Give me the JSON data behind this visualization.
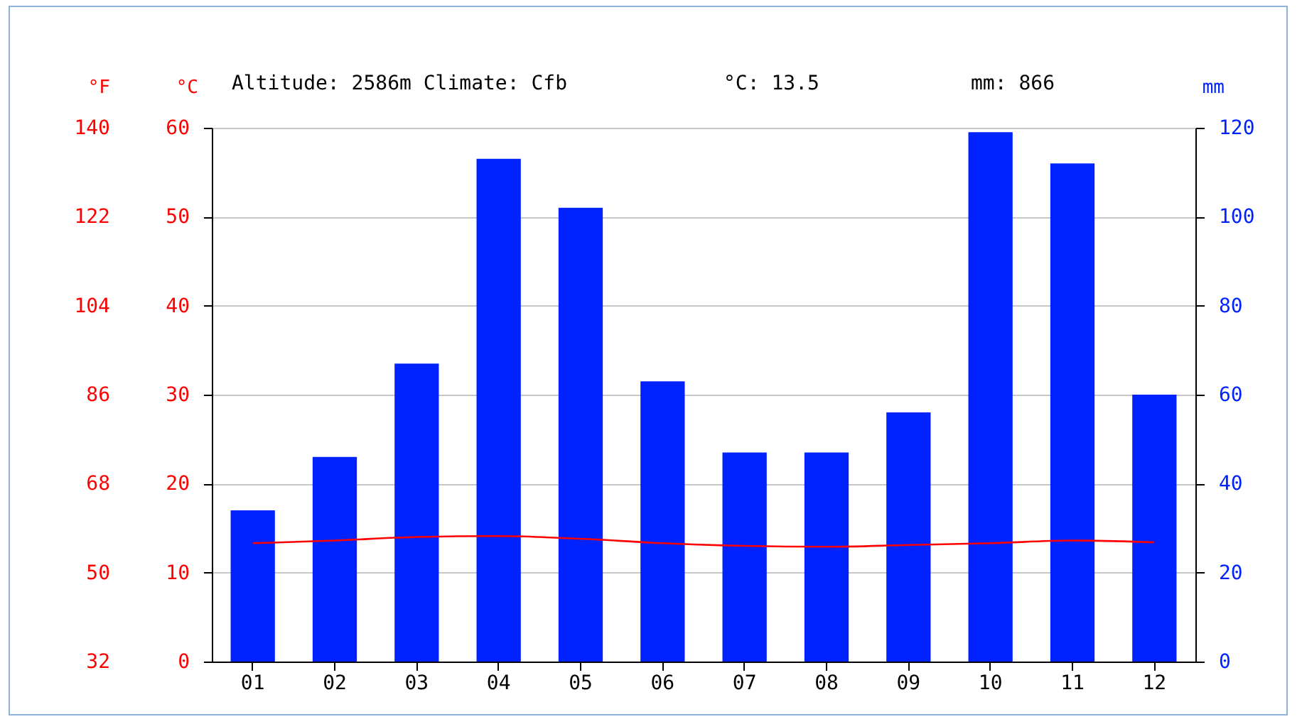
{
  "chart_data": {
    "type": "bar",
    "categories": [
      "01",
      "02",
      "03",
      "04",
      "05",
      "06",
      "07",
      "08",
      "09",
      "10",
      "11",
      "12"
    ],
    "series": [
      {
        "axis": "y2",
        "color": "#0022ff",
        "values": [
          34,
          46,
          67,
          113,
          102,
          63,
          47,
          47,
          56,
          119,
          112,
          60
        ]
      },
      {
        "type": "line",
        "axis": "y",
        "color": "#ff0000",
        "values": [
          13.3,
          13.6,
          14.0,
          14.1,
          13.8,
          13.3,
          13.0,
          12.9,
          13.1,
          13.3,
          13.6,
          13.4
        ]
      }
    ],
    "ylabel": "°C",
    "ylim": [
      0,
      60
    ],
    "yticks": [
      0,
      10,
      20,
      30,
      40,
      50,
      60
    ],
    "y2label": "mm",
    "y2lim": [
      0,
      120
    ],
    "y2ticks": [
      0,
      20,
      40,
      60,
      80,
      100,
      120
    ],
    "y3label": "°F",
    "y3lim": [
      32,
      140
    ],
    "y3ticks": [
      32,
      50,
      68,
      86,
      104,
      122,
      140
    ],
    "grid": "y",
    "annotations": [
      "Altitude: 2586m Climate: Cfb",
      "°C: 13.5",
      "mm: 866"
    ]
  }
}
